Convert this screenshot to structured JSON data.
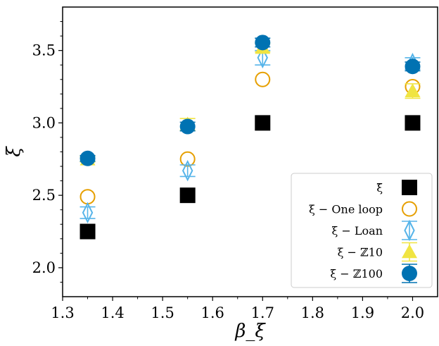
{
  "chart_data": {
    "type": "scatter",
    "xlabel": "β_ξ",
    "ylabel": "ξ",
    "xlim": [
      1.3,
      2.05
    ],
    "ylim": [
      1.8,
      3.8
    ],
    "x_ticks": [
      1.3,
      1.4,
      1.5,
      1.6,
      1.7,
      1.8,
      1.9,
      2.0
    ],
    "y_ticks": [
      2.0,
      2.5,
      3.0,
      3.5
    ],
    "x_tick_labels": [
      "1.3",
      "1.4",
      "1.5",
      "1.6",
      "1.7",
      "1.8",
      "1.9",
      "2.0"
    ],
    "y_tick_labels": [
      "2.0",
      "2.5",
      "3.0",
      "3.5"
    ],
    "legend_position": "lower-right",
    "grid": false,
    "series": [
      {
        "name": "ξ̄",
        "marker": "square",
        "color": "#000000",
        "x": [
          1.35,
          1.55,
          1.7,
          2.0
        ],
        "y": [
          2.25,
          2.5,
          3.0,
          3.0
        ],
        "yerr": [
          0,
          0,
          0,
          0
        ]
      },
      {
        "name": "ξ − One loop",
        "marker": "circle-open",
        "color": "#E69F00",
        "x": [
          1.35,
          1.55,
          1.7,
          2.0
        ],
        "y": [
          2.49,
          2.75,
          3.3,
          3.25
        ],
        "yerr": [
          0,
          0,
          0,
          0
        ]
      },
      {
        "name": "ξ − Loan",
        "marker": "diamond-open",
        "color": "#56B4E9",
        "x": [
          1.35,
          1.55,
          1.7,
          2.0
        ],
        "y": [
          2.38,
          2.67,
          3.45,
          3.41
        ],
        "yerr": [
          0.04,
          0.04,
          0.05,
          0.04
        ]
      },
      {
        "name": "ξ − ℤ10",
        "marker": "triangle",
        "color": "#F0E442",
        "x": [
          1.35,
          1.55,
          1.7,
          2.0
        ],
        "y": [
          2.75,
          2.99,
          3.52,
          3.22
        ],
        "yerr": [
          0.02,
          0.04,
          0.03,
          0.05
        ]
      },
      {
        "name": "ξ − ℤ100",
        "marker": "circle",
        "color": "#0072B2",
        "x": [
          1.35,
          1.55,
          1.7,
          2.0
        ],
        "y": [
          2.755,
          2.975,
          3.555,
          3.39
        ],
        "yerr": [
          0.02,
          0.03,
          0.03,
          0.03
        ]
      }
    ]
  }
}
